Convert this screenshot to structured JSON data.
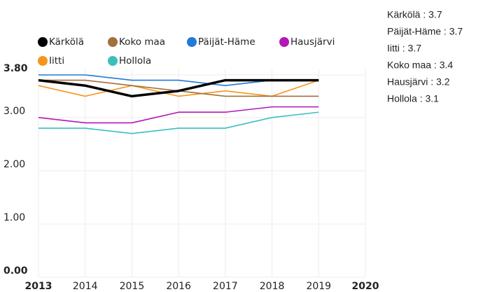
{
  "chart_data": {
    "type": "line",
    "x": [
      2013,
      2014,
      2015,
      2016,
      2017,
      2018,
      2019
    ],
    "xlim": [
      2013,
      2020
    ],
    "xticks": [
      2013,
      2014,
      2015,
      2016,
      2017,
      2018,
      2019,
      2020
    ],
    "ylim": [
      0,
      3.8
    ],
    "yticks": [
      {
        "value": 0,
        "label": "0.00"
      },
      {
        "value": 1,
        "label": "1.00"
      },
      {
        "value": 2,
        "label": "2.00"
      },
      {
        "value": 3,
        "label": "3.00"
      },
      {
        "value": 3.8,
        "label": "3.80"
      }
    ],
    "grid": true,
    "legend": "top-left",
    "series": [
      {
        "name": "Kärkölä",
        "color": "#000000",
        "values": [
          3.7,
          3.6,
          3.4,
          3.5,
          3.7,
          3.7,
          3.7
        ]
      },
      {
        "name": "Koko maa",
        "color": "#a26f3d",
        "values": [
          3.7,
          3.7,
          3.6,
          3.5,
          3.4,
          3.4,
          3.4
        ]
      },
      {
        "name": "Päijät-Häme",
        "color": "#2279d6",
        "values": [
          3.8,
          3.8,
          3.7,
          3.7,
          3.6,
          3.7,
          3.7
        ]
      },
      {
        "name": "Hausjärvi",
        "color": "#b517b5",
        "values": [
          3.0,
          2.9,
          2.9,
          3.1,
          3.1,
          3.2,
          3.2
        ]
      },
      {
        "name": "Iitti",
        "color": "#f7941d",
        "values": [
          3.6,
          3.4,
          3.6,
          3.4,
          3.5,
          3.4,
          3.7
        ]
      },
      {
        "name": "Hollola",
        "color": "#3bbfbd",
        "values": [
          2.8,
          2.8,
          2.7,
          2.8,
          2.8,
          3.0,
          3.1
        ]
      }
    ],
    "annotations": [
      "Kärkölä : 3.7",
      "Päijät-Häme : 3.7",
      "Iitti : 3.7",
      "Koko maa : 3.4",
      "Hausjärvi : 3.2",
      "Hollola : 3.1"
    ]
  }
}
